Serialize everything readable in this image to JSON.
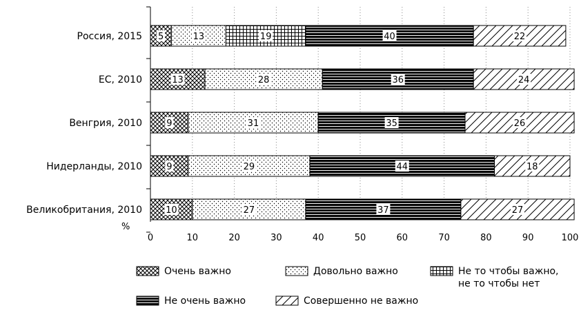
{
  "chart_data": {
    "type": "bar",
    "orientation": "horizontal",
    "stacked": true,
    "x_unit_label": "%",
    "xlim": [
      0,
      100
    ],
    "x_ticks": [
      0,
      10,
      20,
      30,
      40,
      50,
      60,
      70,
      80,
      90,
      100
    ],
    "grid": "vertical dotted",
    "categories": [
      "Россия, 2015",
      "ЕС, 2010",
      "Венгрия, 2010",
      "Нидерланды, 2010",
      "Великобритания, 2010"
    ],
    "series": [
      {
        "name": "Очень важно",
        "pattern": "crosshatch",
        "values": [
          5,
          13,
          9,
          9,
          10
        ]
      },
      {
        "name": "Довольно важно",
        "pattern": "dots",
        "values": [
          13,
          28,
          31,
          29,
          27
        ]
      },
      {
        "name": "Не то чтобы важно, не то чтобы нет",
        "pattern": "grid",
        "values": [
          19,
          null,
          null,
          null,
          null
        ]
      },
      {
        "name": "Не очень важно",
        "pattern": "horizontal-stripes",
        "values": [
          40,
          36,
          35,
          44,
          37
        ]
      },
      {
        "name": "Совершенно не важно",
        "pattern": "diagonal",
        "values": [
          22,
          24,
          26,
          18,
          27
        ]
      }
    ],
    "legend_placement": "bottom",
    "colors": {
      "fill": "#ffffff",
      "ink": "#000000",
      "grid": "#888888"
    }
  }
}
